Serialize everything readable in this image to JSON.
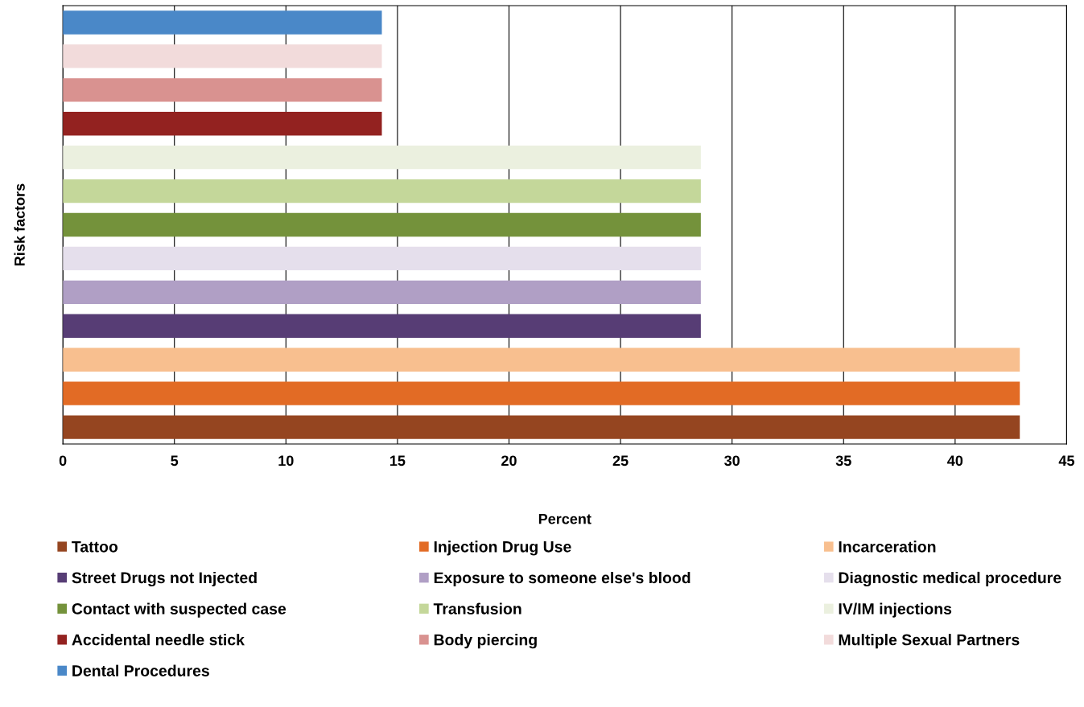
{
  "chart_data": {
    "type": "bar",
    "orientation": "horizontal",
    "ylabel": "Risk factors",
    "xlabel": "Percent",
    "categories": [
      null
    ],
    "xlim": [
      0,
      45
    ],
    "xticks": [
      0,
      5,
      10,
      15,
      20,
      25,
      30,
      35,
      40,
      45
    ],
    "grid": "x",
    "legend": "bottom",
    "series": [
      {
        "name": "Tattoo",
        "color": "#954520",
        "values": [
          42.9
        ]
      },
      {
        "name": "Injection Drug Use",
        "color": "#e26b25",
        "values": [
          42.9
        ]
      },
      {
        "name": "Incarceration",
        "color": "#f8bf8f",
        "values": [
          42.9
        ]
      },
      {
        "name": "Street Drugs not Injected",
        "color": "#573d75",
        "values": [
          28.6
        ]
      },
      {
        "name": "Exposure to someone else's blood",
        "color": "#b09fc5",
        "values": [
          28.6
        ]
      },
      {
        "name": "Diagnostic medical procedure",
        "color": "#e5dfec",
        "values": [
          28.6
        ]
      },
      {
        "name": "Contact with suspected case",
        "color": "#74923b",
        "values": [
          28.6
        ]
      },
      {
        "name": "Transfusion",
        "color": "#c4d79a",
        "values": [
          28.6
        ]
      },
      {
        "name": "IV/IM injections",
        "color": "#ebf0df",
        "values": [
          28.6
        ]
      },
      {
        "name": "Accidental needle stick",
        "color": "#932220",
        "values": [
          14.3
        ]
      },
      {
        "name": "Body piercing",
        "color": "#d99290",
        "values": [
          14.3
        ]
      },
      {
        "name": "Multiple Sexual Partners",
        "color": "#f2dbdb",
        "values": [
          14.3
        ]
      },
      {
        "name": "Dental Procedures",
        "color": "#4a88c8",
        "values": [
          14.3
        ]
      }
    ]
  }
}
